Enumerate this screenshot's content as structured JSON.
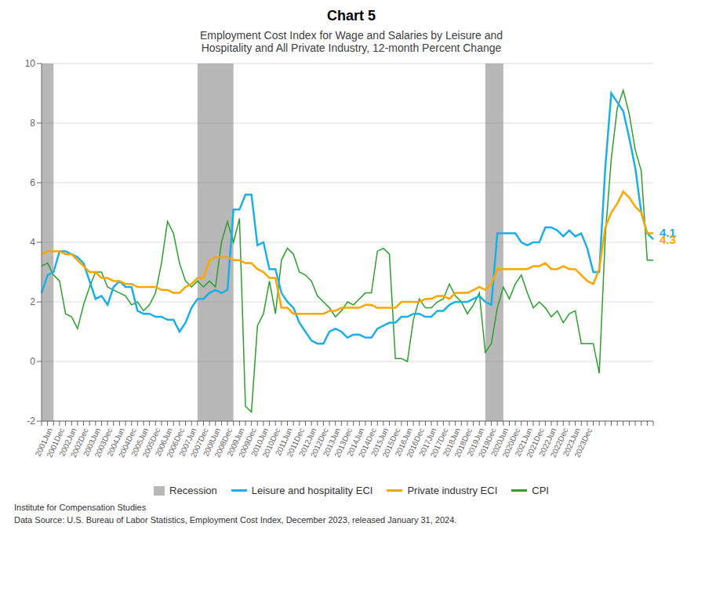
{
  "chart_data": {
    "type": "line",
    "title": "Chart 5",
    "subtitle": "Employment Cost Index for Wage and Salaries by Leisure and\nHospitality and All Private Industry, 12-month Percent Change",
    "footer": [
      "Institute for Compensation Studies",
      "Data Source: U.S. Bureau of Labor Statistics, Employment Cost Index, December 2023, released January 31, 2024."
    ],
    "categories": [
      null,
      "2001Jun",
      null,
      "2001Dec",
      null,
      "2002Jun",
      null,
      "2002Dec",
      null,
      "2003Jun",
      null,
      "2003Dec",
      null,
      "2004Jun",
      null,
      "2004Dec",
      null,
      "2005Jun",
      null,
      "2005Dec",
      null,
      "2006Jun",
      null,
      "2006Dec",
      null,
      "2007Jun",
      null,
      "2007Dec",
      null,
      "2008Jun",
      null,
      "2008Dec",
      null,
      "2009Jun",
      null,
      "2009Dec",
      null,
      "2010Jun",
      null,
      "2010Dec",
      null,
      "2011Jun",
      null,
      "2011Dec",
      null,
      "2012Jun",
      null,
      "2012Dec",
      null,
      "2013Jun",
      null,
      "2013Dec",
      null,
      "2014Jun",
      null,
      "2014Dec",
      null,
      "2015Jun",
      null,
      "2015Dec",
      null,
      "2016Jun",
      null,
      "2016Dec",
      null,
      "2017Jun",
      null,
      "2017Dec",
      null,
      "2018Jun",
      null,
      "2018Dec",
      null,
      "2019Jun",
      null,
      "2019Dec",
      null,
      "2020Jun",
      null,
      "2020Dec",
      null,
      "2021Jun",
      null,
      "2021Dec",
      null,
      "2022Jun",
      null,
      "2022Dec",
      null,
      "2023Jun",
      null,
      "2023Dec",
      null,
      null,
      null,
      null,
      null,
      null,
      null,
      null,
      null,
      null,
      null
    ],
    "recessions": {
      "name": "Recession",
      "color": "#888888",
      "ranges": [
        [
          0,
          2
        ],
        [
          26,
          32
        ],
        [
          74,
          77
        ]
      ]
    },
    "series": [
      {
        "name": "Leisure and hospitality ECI",
        "color": "#1AAFE6",
        "values": [
          2.3,
          2.9,
          3.0,
          3.7,
          3.7,
          3.6,
          3.5,
          3.3,
          2.7,
          2.1,
          2.2,
          1.9,
          2.5,
          2.7,
          2.5,
          2.5,
          1.7,
          1.6,
          1.6,
          1.5,
          1.5,
          1.4,
          1.4,
          1.0,
          1.3,
          1.8,
          2.1,
          2.1,
          2.3,
          2.4,
          2.3,
          2.4,
          5.1,
          5.1,
          5.6,
          5.6,
          3.9,
          4.0,
          3.1,
          3.1,
          2.3,
          2.0,
          1.8,
          1.3,
          1.0,
          0.7,
          0.6,
          0.6,
          1.0,
          1.1,
          1.0,
          0.8,
          0.9,
          0.9,
          0.8,
          0.8,
          1.1,
          1.2,
          1.3,
          1.3,
          1.5,
          1.5,
          1.6,
          1.6,
          1.5,
          1.5,
          1.7,
          1.7,
          1.9,
          2.0,
          2.0,
          2.0,
          2.1,
          2.2,
          2.0,
          1.9,
          4.3,
          4.3,
          4.3,
          4.3,
          4.0,
          3.9,
          4.0,
          4.0,
          4.5,
          4.5,
          4.4,
          4.2,
          4.4,
          4.2,
          4.3,
          3.8,
          3.0,
          3.0,
          6.5,
          9.0,
          8.7,
          8.4,
          7.5,
          6.5,
          5.0,
          4.3,
          4.1
        ]
      },
      {
        "name": "Private industry ECI",
        "color": "#FFA500",
        "values": [
          3.6,
          3.7,
          3.7,
          3.7,
          3.6,
          3.6,
          3.4,
          3.2,
          3.0,
          3.0,
          2.8,
          2.8,
          2.7,
          2.7,
          2.6,
          2.6,
          2.5,
          2.5,
          2.5,
          2.5,
          2.4,
          2.4,
          2.3,
          2.3,
          2.5,
          2.6,
          2.8,
          2.8,
          3.4,
          3.5,
          3.5,
          3.5,
          3.4,
          3.4,
          3.3,
          3.3,
          3.1,
          3.0,
          2.8,
          2.8,
          1.8,
          1.8,
          1.6,
          1.6,
          1.6,
          1.6,
          1.6,
          1.6,
          1.7,
          1.7,
          1.8,
          1.8,
          1.8,
          1.8,
          1.9,
          1.9,
          1.8,
          1.8,
          1.8,
          1.8,
          2.0,
          2.0,
          2.0,
          2.0,
          2.1,
          2.1,
          2.2,
          2.2,
          2.1,
          2.3,
          2.3,
          2.3,
          2.4,
          2.5,
          2.4,
          2.6,
          3.1,
          3.1,
          3.1,
          3.1,
          3.1,
          3.1,
          3.2,
          3.2,
          3.3,
          3.1,
          3.1,
          3.2,
          3.1,
          3.1,
          2.9,
          2.7,
          2.6,
          3.1,
          4.5,
          5.0,
          5.3,
          5.7,
          5.5,
          5.2,
          5.0,
          4.3,
          4.3
        ]
      },
      {
        "name": "CPI",
        "color": "#2CA02C",
        "values": [
          3.2,
          3.3,
          2.9,
          2.7,
          1.6,
          1.5,
          1.1,
          1.9,
          2.5,
          3.0,
          3.0,
          2.5,
          2.4,
          2.3,
          2.2,
          1.9,
          2.0,
          1.7,
          1.9,
          2.3,
          3.3,
          4.7,
          4.3,
          3.3,
          2.7,
          2.5,
          2.7,
          2.5,
          2.7,
          2.5,
          4.0,
          4.7,
          4.0,
          4.8,
          -1.5,
          -1.7,
          1.2,
          1.6,
          2.7,
          1.6,
          3.4,
          3.8,
          3.6,
          3.0,
          2.9,
          2.7,
          2.2,
          2.0,
          1.8,
          1.5,
          1.7,
          2.0,
          1.9,
          2.1,
          2.3,
          2.3,
          3.7,
          3.8,
          3.6,
          0.1,
          0.1,
          0.0,
          1.4,
          2.1,
          1.8,
          1.8,
          2.0,
          2.1,
          2.6,
          2.2,
          2.0,
          1.6,
          1.9,
          2.3,
          0.3,
          0.6,
          1.8,
          2.5,
          2.1,
          2.6,
          2.9,
          2.3,
          1.8,
          2.0,
          1.8,
          1.5,
          1.7,
          1.3,
          1.6,
          1.7,
          0.6,
          0.6,
          0.6,
          -0.4,
          4.2,
          6.8,
          8.5,
          9.1,
          8.3,
          7.1,
          6.4,
          3.4,
          3.4
        ]
      }
    ],
    "annotations": [
      {
        "text": "4.3",
        "series": "Private industry ECI"
      },
      {
        "text": "4.1",
        "series": "Leisure and hospitality ECI"
      }
    ],
    "ylim": [
      -2,
      10
    ],
    "yticks": [
      -2,
      0,
      2,
      4,
      6,
      8,
      10
    ],
    "grid": "y",
    "legend": "bottom"
  }
}
